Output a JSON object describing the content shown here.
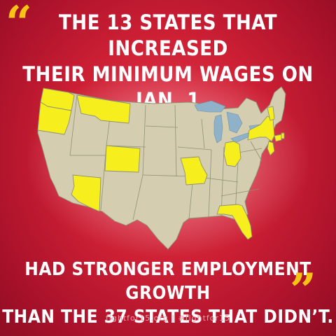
{
  "headline": {
    "line1": "THE 13 STATES THAT INCREASED",
    "line2": "THEIR MINIMUM WAGES ON JAN. 1",
    "line3": "HAD STRONGER EMPLOYMENT GROWTH",
    "line4": "THAN THE 37 STATES THAT DIDN’T."
  },
  "quotes": {
    "open": "“",
    "close": "”"
  },
  "footer": "fightfor15.org | #fightfor15",
  "colors": {
    "background": "#cc1f34",
    "highlight_state": "#f7ee1d",
    "other_state": "#d4cdaf",
    "water": "#8fb2c8",
    "quote": "#f7c315"
  },
  "highlighted_states": [
    "Washington",
    "Oregon",
    "Montana",
    "Colorado",
    "Arizona",
    "Missouri",
    "Ohio",
    "New York",
    "New Jersey",
    "Rhode Island",
    "Connecticut",
    "Vermont",
    "Florida"
  ]
}
